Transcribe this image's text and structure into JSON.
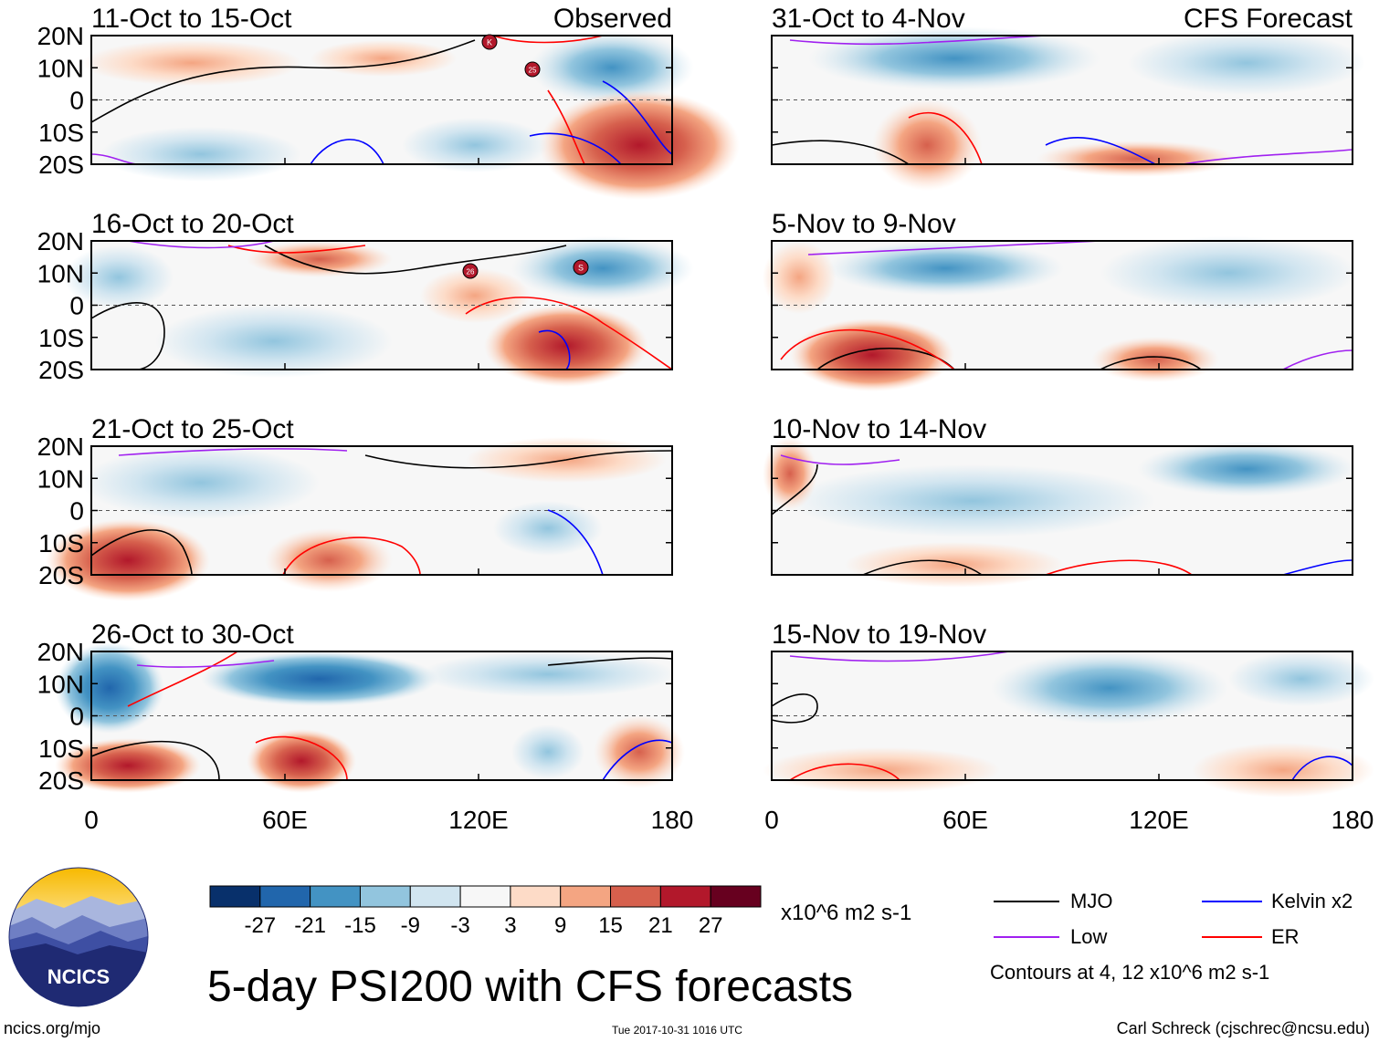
{
  "chart_data": [
    {
      "type": "heatmap",
      "title": "11-Oct to 15-Oct",
      "label": "Observed",
      "panel": "observed-1",
      "xlim": [
        0,
        180
      ],
      "ylim": [
        -20,
        20
      ]
    },
    {
      "type": "heatmap",
      "title": "16-Oct to 20-Oct",
      "label": "",
      "panel": "observed-2",
      "xlim": [
        0,
        180
      ],
      "ylim": [
        -20,
        20
      ]
    },
    {
      "type": "heatmap",
      "title": "21-Oct to 25-Oct",
      "label": "",
      "panel": "observed-3",
      "xlim": [
        0,
        180
      ],
      "ylim": [
        -20,
        20
      ]
    },
    {
      "type": "heatmap",
      "title": "26-Oct to 30-Oct",
      "label": "",
      "panel": "observed-4",
      "xlim": [
        0,
        180
      ],
      "ylim": [
        -20,
        20
      ]
    },
    {
      "type": "heatmap",
      "title": "31-Oct to 4-Nov",
      "label": "CFS Forecast",
      "panel": "forecast-1",
      "xlim": [
        0,
        180
      ],
      "ylim": [
        -20,
        20
      ]
    },
    {
      "type": "heatmap",
      "title": "5-Nov to 9-Nov",
      "label": "",
      "panel": "forecast-2",
      "xlim": [
        0,
        180
      ],
      "ylim": [
        -20,
        20
      ]
    },
    {
      "type": "heatmap",
      "title": "10-Nov to 14-Nov",
      "label": "",
      "panel": "forecast-3",
      "xlim": [
        0,
        180
      ],
      "ylim": [
        -20,
        20
      ]
    },
    {
      "type": "heatmap",
      "title": "15-Nov to 19-Nov",
      "label": "",
      "panel": "forecast-4",
      "xlim": [
        0,
        180
      ],
      "ylim": [
        -20,
        20
      ]
    }
  ],
  "axes": {
    "y_ticks": [
      "20N",
      "10N",
      "0",
      "10S",
      "20S"
    ],
    "y_values": [
      20,
      10,
      0,
      -10,
      -20
    ],
    "x_ticks": [
      "0",
      "60E",
      "120E",
      "180"
    ],
    "x_values": [
      0,
      60,
      120,
      180
    ]
  },
  "colorbar": {
    "colors": [
      "#08306b",
      "#2166ac",
      "#4393c3",
      "#92c5de",
      "#d1e5f0",
      "#f7f7f7",
      "#fddbc7",
      "#f4a582",
      "#d6604d",
      "#b2182b",
      "#67001f"
    ],
    "labels": [
      "-27",
      "-21",
      "-15",
      "-9",
      "-3",
      "3",
      "9",
      "15",
      "21",
      "27"
    ],
    "units": "x10^6 m2 s-1"
  },
  "legend": {
    "items": [
      {
        "label": "MJO",
        "color": "#000000"
      },
      {
        "label": "Kelvin x2",
        "color": "#0000ff"
      },
      {
        "label": "Low",
        "color": "#a020f0"
      },
      {
        "label": "ER",
        "color": "#ff0000"
      }
    ],
    "note": "Contours at 4, 12 x10^6 m2 s-1"
  },
  "storms": {
    "observed-1": [
      "K",
      "25"
    ],
    "observed-2": [
      "26",
      "S"
    ]
  },
  "footer": {
    "main_title": "5-day PSI200 with CFS forecasts",
    "logo_text": "NCICS",
    "url": "ncics.org/mjo",
    "timestamp": "Tue 2017-10-31 1016 UTC",
    "author": "Carl Schreck (cjschrec@ncsu.edu)"
  }
}
